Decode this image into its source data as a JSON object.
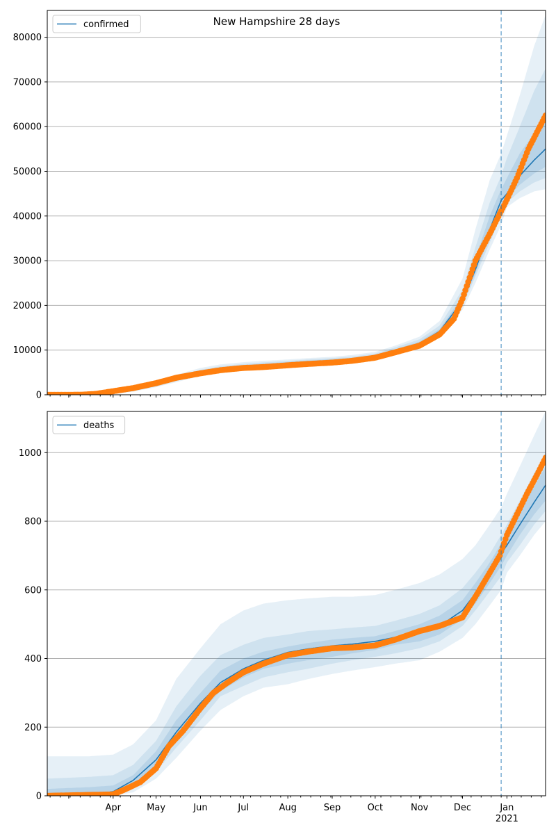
{
  "title": "New Hampshire 28 days",
  "colors": {
    "line": "#1f77b4",
    "band": "#1f77b4",
    "points": "#ff7f0e",
    "grid": "#b0b0b0",
    "vline": "#1f77b4"
  },
  "chart_data": [
    {
      "type": "line",
      "title": "New Hampshire 28 days",
      "series_name": "confirmed",
      "legend_position": "top-left",
      "grid": "horizontal",
      "xlim": [
        "2020-02-15",
        "2021-01-28"
      ],
      "ylim": [
        0,
        86000
      ],
      "y_ticks": [
        0,
        10000,
        20000,
        30000,
        40000,
        50000,
        60000,
        70000,
        80000
      ],
      "forecast_start": "2020-12-28",
      "model": {
        "dates": [
          "2020-02-15",
          "2020-03-15",
          "2020-04-01",
          "2020-04-15",
          "2020-05-01",
          "2020-05-15",
          "2020-06-01",
          "2020-06-15",
          "2020-07-01",
          "2020-07-15",
          "2020-08-01",
          "2020-08-15",
          "2020-09-01",
          "2020-09-15",
          "2020-10-01",
          "2020-10-15",
          "2020-11-01",
          "2020-11-15",
          "2020-12-01",
          "2020-12-10",
          "2020-12-20",
          "2020-12-28",
          "2021-01-01",
          "2021-01-10",
          "2021-01-20",
          "2021-01-28"
        ],
        "mean": [
          0,
          50,
          300,
          1000,
          2200,
          3600,
          5000,
          5800,
          6300,
          6600,
          7000,
          7300,
          7600,
          7900,
          8500,
          9800,
          11500,
          14200,
          21000,
          28000,
          37000,
          43500,
          45000,
          49000,
          52500,
          55000
        ],
        "bands": [
          {
            "lower": [
              0,
              20,
              200,
              700,
              1700,
              2800,
              4200,
              5000,
              5600,
              5900,
              6300,
              6600,
              6900,
              7200,
              7800,
              9000,
              10500,
              13000,
              19000,
              25000,
              32500,
              38000,
              42000,
              44000,
              45500,
              46000
            ],
            "upper": [
              10,
              100,
              450,
              1400,
              2900,
              4500,
              6000,
              6800,
              7300,
              7600,
              7900,
              8200,
              8500,
              8900,
              9600,
              11000,
              13000,
              16500,
              26000,
              37000,
              48000,
              54000,
              58000,
              67000,
              78000,
              85000
            ]
          },
          {
            "lower": [
              0,
              30,
              230,
              800,
              1850,
              3050,
              4450,
              5250,
              5800,
              6100,
              6500,
              6800,
              7100,
              7400,
              8000,
              9250,
              10800,
              13400,
              19800,
              26500,
              34000,
              40000,
              43000,
              45500,
              47500,
              48500
            ],
            "upper": [
              5,
              80,
              400,
              1250,
              2650,
              4150,
              5600,
              6400,
              6900,
              7250,
              7600,
              7900,
              8200,
              8550,
              9200,
              10600,
              12400,
              15500,
              23500,
              33000,
              43000,
              49000,
              53000,
              60000,
              68000,
              73000
            ]
          },
          {
            "lower": [
              0,
              40,
              260,
              880,
              2000,
              3300,
              4700,
              5500,
              6000,
              6300,
              6700,
              7000,
              7300,
              7600,
              8200,
              9450,
              11100,
              13800,
              20300,
              27200,
              35500,
              41800,
              44000,
              47000,
              49500,
              51000
            ],
            "upper": [
              3,
              65,
              360,
              1130,
              2420,
              3900,
              5350,
              6150,
              6650,
              6950,
              7350,
              7650,
              7950,
              8250,
              8850,
              10200,
              11900,
              14700,
              22000,
              30500,
              40000,
              46000,
              48500,
              54000,
              58500,
              62000
            ]
          }
        ]
      },
      "observed": {
        "dates": [
          "2020-02-15",
          "2020-03-10",
          "2020-03-20",
          "2020-04-01",
          "2020-04-15",
          "2020-05-01",
          "2020-05-15",
          "2020-06-01",
          "2020-06-15",
          "2020-07-01",
          "2020-07-15",
          "2020-08-01",
          "2020-08-15",
          "2020-09-01",
          "2020-09-15",
          "2020-10-01",
          "2020-10-15",
          "2020-11-01",
          "2020-11-15",
          "2020-11-25",
          "2020-12-01",
          "2020-12-10",
          "2020-12-20",
          "2020-12-27",
          "2020-12-31",
          "2021-01-08",
          "2021-01-16",
          "2021-01-24",
          "2021-01-28"
        ],
        "values": [
          0,
          10,
          200,
          800,
          1500,
          2600,
          3800,
          4800,
          5500,
          6000,
          6200,
          6600,
          6900,
          7200,
          7600,
          8300,
          9500,
          11000,
          13500,
          17000,
          21500,
          30000,
          36000,
          40500,
          43000,
          48500,
          55000,
          60000,
          62500
        ]
      }
    },
    {
      "type": "line",
      "title": "",
      "series_name": "deaths",
      "legend_position": "top-left",
      "grid": "horizontal",
      "xlim": [
        "2020-02-15",
        "2021-01-28"
      ],
      "ylim": [
        0,
        1120
      ],
      "y_ticks": [
        0,
        200,
        400,
        600,
        800,
        1000
      ],
      "x_ticks": [
        "Apr",
        "May",
        "Jun",
        "Jul",
        "Aug",
        "Sep",
        "Oct",
        "Nov",
        "Dec",
        "Jan"
      ],
      "x_tick_dates": [
        "2020-04-01",
        "2020-05-01",
        "2020-06-01",
        "2020-07-01",
        "2020-08-01",
        "2020-09-01",
        "2020-10-01",
        "2020-11-01",
        "2020-12-01",
        "2021-01-01"
      ],
      "x_year_label": "2021",
      "forecast_start": "2020-12-28",
      "model": {
        "dates": [
          "2020-02-15",
          "2020-03-15",
          "2020-04-01",
          "2020-04-15",
          "2020-05-01",
          "2020-05-15",
          "2020-06-01",
          "2020-06-15",
          "2020-07-01",
          "2020-07-15",
          "2020-08-01",
          "2020-08-15",
          "2020-09-01",
          "2020-09-15",
          "2020-10-01",
          "2020-10-15",
          "2020-11-01",
          "2020-11-15",
          "2020-12-01",
          "2020-12-10",
          "2020-12-20",
          "2020-12-28",
          "2021-01-01",
          "2021-01-10",
          "2021-01-20",
          "2021-01-28"
        ],
        "mean": [
          0,
          3,
          12,
          45,
          105,
          185,
          270,
          330,
          370,
          395,
          418,
          428,
          437,
          442,
          450,
          462,
          475,
          495,
          540,
          590,
          650,
          705,
          730,
          790,
          855,
          905
        ],
        "bands": [
          {
            "lower": [
              0,
              0,
              0,
              10,
              50,
              110,
              190,
              250,
              290,
              315,
              325,
              340,
              355,
              365,
              375,
              385,
              395,
              420,
              460,
              500,
              555,
              600,
              650,
              700,
              760,
              800
            ],
            "upper": [
              115,
              115,
              120,
              150,
              220,
              340,
              430,
              500,
              540,
              560,
              570,
              575,
              580,
              580,
              585,
              600,
              620,
              645,
              690,
              730,
              790,
              840,
              880,
              960,
              1050,
              1120
            ]
          },
          {
            "lower": [
              0,
              0,
              5,
              22,
              70,
              140,
              220,
              290,
              320,
              345,
              360,
              370,
              385,
              395,
              405,
              415,
              430,
              450,
              495,
              540,
              595,
              640,
              680,
              730,
              790,
              830
            ],
            "upper": [
              50,
              55,
              60,
              90,
              160,
              260,
              350,
              410,
              440,
              460,
              470,
              480,
              485,
              490,
              495,
              510,
              530,
              555,
              605,
              650,
              705,
              760,
              790,
              860,
              940,
              1000
            ],
            "comment_free": true
          },
          {
            "lower": [
              0,
              1,
              8,
              32,
              85,
              160,
              245,
              305,
              345,
              370,
              385,
              395,
              405,
              415,
              425,
              440,
              450,
              470,
              515,
              560,
              620,
              670,
              700,
              760,
              820,
              860
            ],
            "upper": [
              20,
              25,
              30,
              60,
              130,
              220,
              300,
              365,
              400,
              420,
              435,
              445,
              455,
              460,
              465,
              480,
              500,
              525,
              570,
              620,
              680,
              735,
              760,
              830,
              900,
              960
            ]
          }
        ]
      },
      "observed": {
        "dates": [
          "2020-02-15",
          "2020-04-01",
          "2020-04-10",
          "2020-04-20",
          "2020-05-01",
          "2020-05-10",
          "2020-05-20",
          "2020-06-01",
          "2020-06-10",
          "2020-06-20",
          "2020-07-01",
          "2020-07-15",
          "2020-08-01",
          "2020-08-15",
          "2020-09-01",
          "2020-09-15",
          "2020-10-01",
          "2020-10-15",
          "2020-11-01",
          "2020-11-15",
          "2020-12-01",
          "2020-12-10",
          "2020-12-20",
          "2020-12-27",
          "2021-01-01",
          "2021-01-08",
          "2021-01-15",
          "2021-01-22",
          "2021-01-28"
        ],
        "values": [
          0,
          4,
          20,
          40,
          80,
          145,
          190,
          255,
          300,
          330,
          360,
          385,
          410,
          420,
          430,
          432,
          438,
          455,
          480,
          495,
          520,
          580,
          650,
          700,
          760,
          820,
          880,
          935,
          985
        ]
      }
    }
  ]
}
